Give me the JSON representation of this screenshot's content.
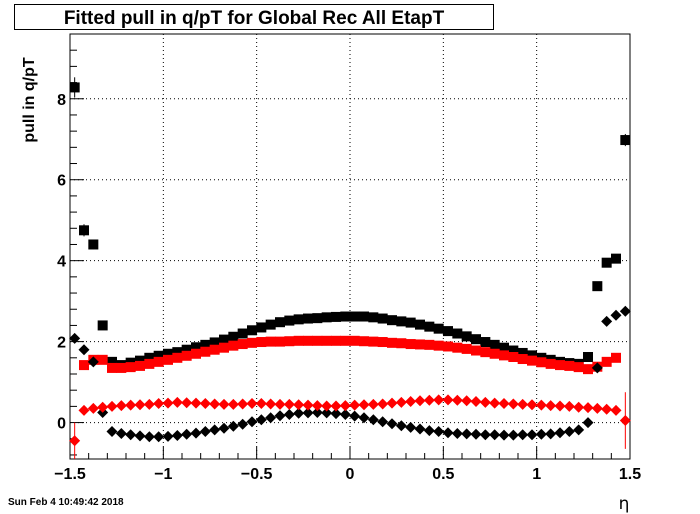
{
  "title": "Fitted pull in q/pT for Global Rec All EtapT",
  "footer_timestamp": "Sun Feb  4 10:49:42 2018",
  "chart_data": {
    "type": "scatter",
    "title": "Fitted pull in q/pT for Global Rec All EtapT",
    "xlabel": "η",
    "ylabel": "pull in q/pT",
    "xlim": [
      -1.5,
      1.5
    ],
    "ylim": [
      -0.9,
      9.6
    ],
    "xticks": [
      -1.5,
      -1,
      -0.5,
      0,
      0.5,
      1,
      1.5
    ],
    "xtick_labels": [
      "−1.5",
      "−1",
      "−0.5",
      "0",
      "0.5",
      "1",
      "1.5"
    ],
    "yticks": [
      0,
      2,
      4,
      6,
      8
    ],
    "ytick_labels": [
      "0",
      "2",
      "4",
      "6",
      "8"
    ],
    "grid": true,
    "series": [
      {
        "color": "#000000",
        "marker": "square",
        "x": [
          -1.475,
          -1.425,
          -1.375,
          -1.325,
          -1.275,
          -1.225,
          -1.175,
          -1.125,
          -1.075,
          -1.025,
          -0.975,
          -0.925,
          -0.875,
          -0.825,
          -0.775,
          -0.725,
          -0.675,
          -0.625,
          -0.575,
          -0.525,
          -0.475,
          -0.425,
          -0.375,
          -0.325,
          -0.275,
          -0.225,
          -0.175,
          -0.125,
          -0.075,
          -0.025,
          0.025,
          0.075,
          0.125,
          0.175,
          0.225,
          0.275,
          0.325,
          0.375,
          0.425,
          0.475,
          0.525,
          0.575,
          0.625,
          0.675,
          0.725,
          0.775,
          0.825,
          0.875,
          0.925,
          0.975,
          1.025,
          1.075,
          1.125,
          1.175,
          1.225,
          1.275,
          1.325,
          1.375,
          1.425,
          1.475
        ],
        "y": [
          8.28,
          4.75,
          4.4,
          2.4,
          1.5,
          1.42,
          1.48,
          1.53,
          1.6,
          1.65,
          1.7,
          1.74,
          1.8,
          1.86,
          1.92,
          1.98,
          2.05,
          2.12,
          2.2,
          2.28,
          2.35,
          2.42,
          2.48,
          2.52,
          2.55,
          2.57,
          2.58,
          2.6,
          2.61,
          2.62,
          2.62,
          2.62,
          2.6,
          2.57,
          2.53,
          2.5,
          2.47,
          2.42,
          2.37,
          2.32,
          2.26,
          2.2,
          2.13,
          2.06,
          1.99,
          1.92,
          1.85,
          1.78,
          1.72,
          1.66,
          1.6,
          1.55,
          1.5,
          1.47,
          1.45,
          1.62,
          3.37,
          3.95,
          4.05,
          6.98
        ],
        "yerr": [
          0.25,
          0.15,
          0.12,
          0.1,
          0,
          0,
          0,
          0,
          0,
          0,
          0,
          0,
          0,
          0,
          0,
          0,
          0,
          0,
          0,
          0,
          0,
          0,
          0,
          0,
          0,
          0,
          0,
          0,
          0,
          0,
          0,
          0,
          0,
          0,
          0,
          0,
          0,
          0,
          0,
          0,
          0,
          0,
          0,
          0,
          0,
          0,
          0,
          0,
          0,
          0,
          0,
          0,
          0,
          0,
          0,
          0.06,
          0.06,
          0.06,
          0.06,
          0.15
        ]
      },
      {
        "color": "#ff0000",
        "marker": "square",
        "x": [
          -1.425,
          -1.375,
          -1.325,
          -1.275,
          -1.225,
          -1.175,
          -1.125,
          -1.075,
          -1.025,
          -0.975,
          -0.925,
          -0.875,
          -0.825,
          -0.775,
          -0.725,
          -0.675,
          -0.625,
          -0.575,
          -0.525,
          -0.475,
          -0.425,
          -0.375,
          -0.325,
          -0.275,
          -0.225,
          -0.175,
          -0.125,
          -0.075,
          -0.025,
          0.025,
          0.075,
          0.125,
          0.175,
          0.225,
          0.275,
          0.325,
          0.375,
          0.425,
          0.475,
          0.525,
          0.575,
          0.625,
          0.675,
          0.725,
          0.775,
          0.825,
          0.875,
          0.925,
          0.975,
          1.025,
          1.075,
          1.125,
          1.175,
          1.225,
          1.275,
          1.325,
          1.375,
          1.425
        ],
        "y": [
          1.42,
          1.55,
          1.55,
          1.35,
          1.35,
          1.37,
          1.4,
          1.45,
          1.5,
          1.55,
          1.6,
          1.65,
          1.7,
          1.75,
          1.8,
          1.85,
          1.9,
          1.94,
          1.97,
          1.99,
          2.0,
          2.0,
          2.01,
          2.02,
          2.02,
          2.02,
          2.02,
          2.02,
          2.02,
          2.02,
          2.01,
          2.0,
          1.99,
          1.97,
          1.96,
          1.94,
          1.93,
          1.92,
          1.9,
          1.88,
          1.85,
          1.82,
          1.78,
          1.74,
          1.7,
          1.66,
          1.62,
          1.57,
          1.53,
          1.49,
          1.45,
          1.42,
          1.4,
          1.37,
          1.32,
          1.38,
          1.5,
          1.6
        ],
        "yerr": []
      },
      {
        "color": "#000000",
        "marker": "diamond",
        "x": [
          -1.475,
          -1.425,
          -1.375,
          -1.325,
          -1.275,
          -1.225,
          -1.175,
          -1.125,
          -1.075,
          -1.025,
          -0.975,
          -0.925,
          -0.875,
          -0.825,
          -0.775,
          -0.725,
          -0.675,
          -0.625,
          -0.575,
          -0.525,
          -0.475,
          -0.425,
          -0.375,
          -0.325,
          -0.275,
          -0.225,
          -0.175,
          -0.125,
          -0.075,
          -0.025,
          0.025,
          0.075,
          0.125,
          0.175,
          0.225,
          0.275,
          0.325,
          0.375,
          0.425,
          0.475,
          0.525,
          0.575,
          0.625,
          0.675,
          0.725,
          0.775,
          0.825,
          0.875,
          0.925,
          0.975,
          1.025,
          1.075,
          1.125,
          1.175,
          1.225,
          1.275,
          1.325,
          1.375,
          1.425,
          1.475
        ],
        "y": [
          2.08,
          1.8,
          1.5,
          0.25,
          -0.22,
          -0.27,
          -0.3,
          -0.33,
          -0.35,
          -0.35,
          -0.34,
          -0.32,
          -0.29,
          -0.26,
          -0.22,
          -0.18,
          -0.14,
          -0.09,
          -0.04,
          0.02,
          0.07,
          0.12,
          0.17,
          0.2,
          0.23,
          0.24,
          0.25,
          0.24,
          0.22,
          0.2,
          0.16,
          0.12,
          0.07,
          0.02,
          -0.03,
          -0.08,
          -0.12,
          -0.16,
          -0.2,
          -0.22,
          -0.25,
          -0.27,
          -0.28,
          -0.29,
          -0.3,
          -0.3,
          -0.31,
          -0.31,
          -0.3,
          -0.3,
          -0.29,
          -0.28,
          -0.25,
          -0.22,
          -0.18,
          0.0,
          1.35,
          2.5,
          2.65,
          2.75
        ],
        "yerr": []
      },
      {
        "color": "#ff0000",
        "marker": "diamond",
        "x": [
          -1.475,
          -1.425,
          -1.375,
          -1.325,
          -1.275,
          -1.225,
          -1.175,
          -1.125,
          -1.075,
          -1.025,
          -0.975,
          -0.925,
          -0.875,
          -0.825,
          -0.775,
          -0.725,
          -0.675,
          -0.625,
          -0.575,
          -0.525,
          -0.475,
          -0.425,
          -0.375,
          -0.325,
          -0.275,
          -0.225,
          -0.175,
          -0.125,
          -0.075,
          -0.025,
          0.025,
          0.075,
          0.125,
          0.175,
          0.225,
          0.275,
          0.325,
          0.375,
          0.425,
          0.475,
          0.525,
          0.575,
          0.625,
          0.675,
          0.725,
          0.775,
          0.825,
          0.875,
          0.925,
          0.975,
          1.025,
          1.075,
          1.125,
          1.175,
          1.225,
          1.275,
          1.325,
          1.375,
          1.425,
          1.475
        ],
        "y": [
          -0.45,
          0.3,
          0.35,
          0.38,
          0.4,
          0.42,
          0.43,
          0.44,
          0.45,
          0.47,
          0.48,
          0.5,
          0.49,
          0.48,
          0.47,
          0.46,
          0.45,
          0.45,
          0.46,
          0.47,
          0.47,
          0.46,
          0.45,
          0.45,
          0.44,
          0.43,
          0.42,
          0.41,
          0.41,
          0.42,
          0.43,
          0.44,
          0.45,
          0.46,
          0.48,
          0.5,
          0.52,
          0.54,
          0.55,
          0.56,
          0.56,
          0.55,
          0.54,
          0.52,
          0.5,
          0.48,
          0.47,
          0.46,
          0.45,
          0.44,
          0.43,
          0.42,
          0.41,
          0.4,
          0.38,
          0.37,
          0.35,
          0.33,
          0.3,
          0.05
        ],
        "yerr": [
          0.45,
          0,
          0,
          0,
          0,
          0,
          0,
          0,
          0,
          0,
          0,
          0,
          0,
          0,
          0,
          0,
          0,
          0,
          0,
          0,
          0,
          0,
          0,
          0,
          0,
          0,
          0,
          0,
          0,
          0,
          0,
          0,
          0,
          0,
          0,
          0,
          0,
          0,
          0,
          0,
          0,
          0,
          0,
          0,
          0,
          0,
          0,
          0,
          0,
          0,
          0,
          0,
          0,
          0,
          0,
          0,
          0,
          0,
          0,
          0.7
        ]
      }
    ]
  }
}
